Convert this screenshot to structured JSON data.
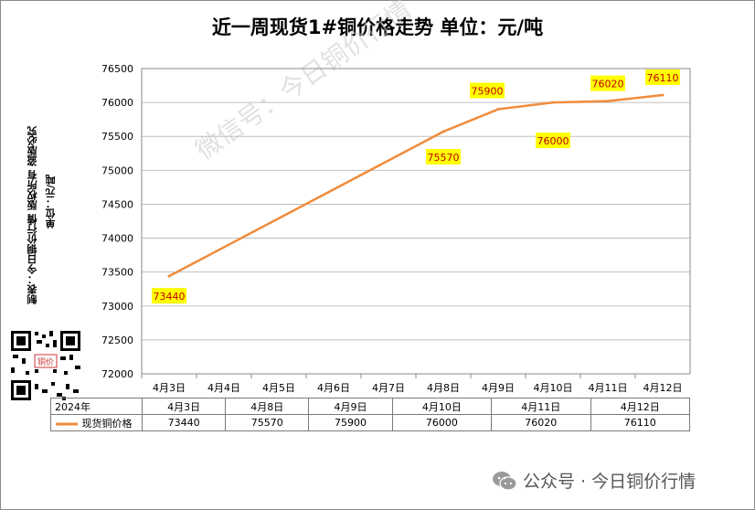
{
  "title": "近一周现货1#铜价格走势 单位：元/吨",
  "side_note_1": "制表：今日铜价行情   版权所有   盗版必究",
  "side_note_2": "单位：元/吨",
  "watermark": "微信号：今日铜价行情",
  "qr_label": "铜价",
  "footer": {
    "source": "公众号",
    "separator": "·",
    "account": "今日铜价行情"
  },
  "colors": {
    "line": "#F08C3C",
    "label_bg": "#FFFF00",
    "label_text": "#C00000",
    "grid": "#BFBFBF"
  },
  "chart_data": {
    "type": "line",
    "title": "近一周现货1#铜价格走势 单位：元/吨",
    "x_ticks": [
      "4月3日",
      "4月4日",
      "4月5日",
      "4月6日",
      "4月7日",
      "4月8日",
      "4月9日",
      "4月10日",
      "4月11日",
      "4月12日"
    ],
    "y_ticks": [
      72000,
      72500,
      73000,
      73500,
      74000,
      74500,
      75000,
      75500,
      76000,
      76500
    ],
    "ylim": [
      72000,
      76500
    ],
    "grid": "horizontal",
    "series": [
      {
        "name": "现货铜价格",
        "color": "#F08C3C",
        "points": [
          {
            "x": "4月3日",
            "y": 73440
          },
          {
            "x": "4月8日",
            "y": 75570
          },
          {
            "x": "4月9日",
            "y": 75900
          },
          {
            "x": "4月10日",
            "y": 76000
          },
          {
            "x": "4月11日",
            "y": 76020
          },
          {
            "x": "4月12日",
            "y": 76110
          }
        ]
      }
    ],
    "data_labels": [
      "73440",
      "75570",
      "75900",
      "76000",
      "76020",
      "76110"
    ]
  },
  "table": {
    "year": "2024年",
    "dates": [
      "4月3日",
      "4月8日",
      "4月9日",
      "4月10日",
      "4月11日",
      "4月12日"
    ],
    "series_name": "现货铜价格",
    "values": [
      "73440",
      "75570",
      "75900",
      "76000",
      "76020",
      "76110"
    ]
  }
}
